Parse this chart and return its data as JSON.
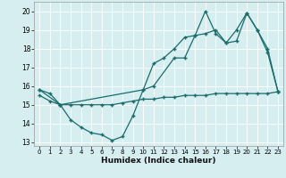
{
  "xlabel": "Humidex (Indice chaleur)",
  "bg_color": "#d6eef0",
  "line_color": "#1a6b6b",
  "grid_color": "#ffffff",
  "xlim": [
    -0.5,
    23.5
  ],
  "ylim": [
    12.8,
    20.5
  ],
  "yticks": [
    13,
    14,
    15,
    16,
    17,
    18,
    19,
    20
  ],
  "xticks": [
    0,
    1,
    2,
    3,
    4,
    5,
    6,
    7,
    8,
    9,
    10,
    11,
    12,
    13,
    14,
    15,
    16,
    17,
    18,
    19,
    20,
    21,
    22,
    23
  ],
  "series1_x": [
    0,
    1,
    2,
    3,
    4,
    5,
    6,
    7,
    8,
    9,
    10,
    11,
    12,
    13,
    14,
    15,
    16,
    17,
    18,
    19,
    20,
    21,
    22,
    23
  ],
  "series1_y": [
    15.8,
    15.6,
    15.0,
    14.2,
    13.8,
    13.5,
    13.4,
    13.1,
    13.3,
    14.4,
    15.8,
    17.2,
    17.5,
    18.0,
    18.6,
    18.7,
    18.8,
    19.0,
    18.3,
    19.0,
    19.9,
    19.0,
    18.0,
    15.7
  ],
  "series2_x": [
    0,
    2,
    10,
    11,
    13,
    14,
    15,
    16,
    17,
    18,
    19,
    20,
    21,
    22,
    23
  ],
  "series2_y": [
    15.8,
    15.0,
    15.8,
    16.0,
    17.5,
    17.5,
    18.7,
    20.0,
    18.8,
    18.3,
    18.4,
    19.9,
    19.0,
    17.8,
    15.7
  ],
  "series3_x": [
    0,
    1,
    2,
    3,
    4,
    5,
    6,
    7,
    8,
    9,
    10,
    11,
    12,
    13,
    14,
    15,
    16,
    17,
    18,
    19,
    20,
    21,
    22,
    23
  ],
  "series3_y": [
    15.5,
    15.2,
    15.0,
    15.0,
    15.0,
    15.0,
    15.0,
    15.0,
    15.1,
    15.2,
    15.3,
    15.3,
    15.4,
    15.4,
    15.5,
    15.5,
    15.5,
    15.6,
    15.6,
    15.6,
    15.6,
    15.6,
    15.6,
    15.7
  ]
}
